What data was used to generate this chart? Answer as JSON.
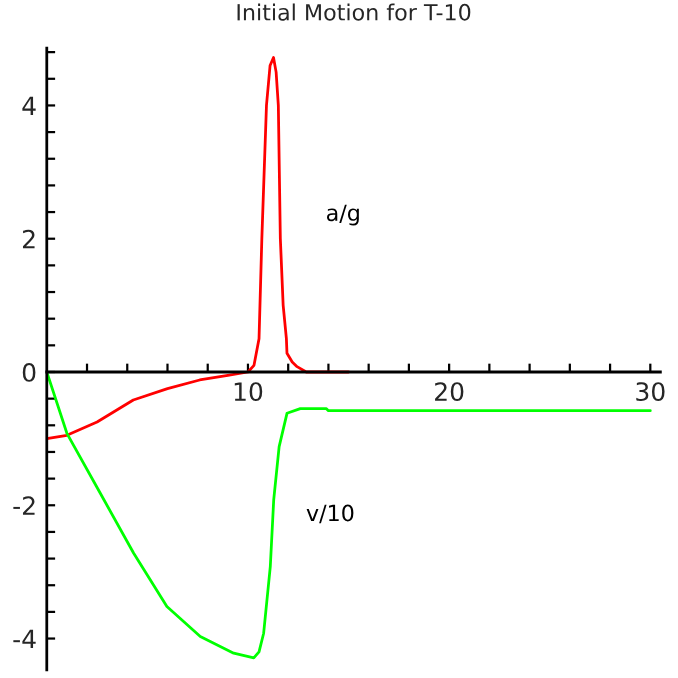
{
  "chart_data": {
    "type": "line",
    "title": "Initial Motion for T-10",
    "xlim": [
      0,
      30.5
    ],
    "ylim": [
      -4.47,
      4.86
    ],
    "xticks": [
      {
        "value": 2,
        "label": null
      },
      {
        "value": 4,
        "label": null
      },
      {
        "value": 6,
        "label": null
      },
      {
        "value": 8,
        "label": null
      },
      10,
      {
        "value": 12,
        "label": null
      },
      {
        "value": 14,
        "label": null
      },
      {
        "value": 16,
        "label": null
      },
      {
        "value": 18,
        "label": null
      },
      20,
      {
        "value": 22,
        "label": null
      },
      {
        "value": 24,
        "label": null
      },
      {
        "value": 26,
        "label": null
      },
      {
        "value": 28,
        "label": null
      },
      30
    ],
    "yticks": [
      -4,
      {
        "value": -3.6,
        "label": null
      },
      {
        "value": -3.2,
        "label": null
      },
      {
        "value": -2.8,
        "label": null
      },
      {
        "value": -2.4,
        "label": null
      },
      -2,
      {
        "value": -1.6,
        "label": null
      },
      {
        "value": -1.2,
        "label": null
      },
      {
        "value": -0.8,
        "label": null
      },
      {
        "value": -0.4,
        "label": null
      },
      0,
      {
        "value": 0.4,
        "label": null
      },
      {
        "value": 0.8,
        "label": null
      },
      {
        "value": 1.2,
        "label": null
      },
      {
        "value": 1.6,
        "label": null
      },
      2,
      {
        "value": 2.4,
        "label": null
      },
      {
        "value": 2.8,
        "label": null
      },
      {
        "value": 3.2,
        "label": null
      },
      {
        "value": 3.6,
        "label": null
      },
      4,
      {
        "value": 4.4,
        "label": null
      },
      {
        "value": 4.8,
        "label": null
      }
    ],
    "grid": false,
    "legend": false,
    "marker": "none",
    "line_style": "solid",
    "series": [
      {
        "name": "a/g",
        "color": "#ff0000",
        "x": [
          0,
          1,
          2.5,
          4.3,
          6,
          7.6,
          9,
          10,
          10.3,
          10.55,
          10.69,
          10.92,
          11.1,
          11.27,
          11.4,
          11.51,
          11.61,
          11.75,
          11.91,
          11.94,
          12.2,
          12.44,
          12.9,
          15
        ],
        "values": [
          -1.0,
          -0.95,
          -0.75,
          -0.42,
          -0.25,
          -0.12,
          -0.05,
          0,
          0.1,
          0.5,
          2,
          4,
          4.6,
          4.72,
          4.5,
          4,
          2,
          1,
          0.5,
          0.28,
          0.15,
          0.08,
          0,
          0
        ]
      },
      {
        "name": "v/10",
        "color": "#00ff00",
        "x": [
          0,
          1,
          2.66,
          4.32,
          5.97,
          7.63,
          9.29,
          10.29,
          10.55,
          10.78,
          11.11,
          11.28,
          11.55,
          11.94,
          12.6,
          13.9,
          14.0,
          30
        ],
        "values": [
          0,
          -0.92,
          -1.82,
          -2.72,
          -3.52,
          -3.97,
          -4.22,
          -4.29,
          -4.2,
          -3.92,
          -2.92,
          -1.92,
          -1.12,
          -0.62,
          -0.55,
          -0.55,
          -0.58,
          -0.58
        ]
      }
    ]
  }
}
